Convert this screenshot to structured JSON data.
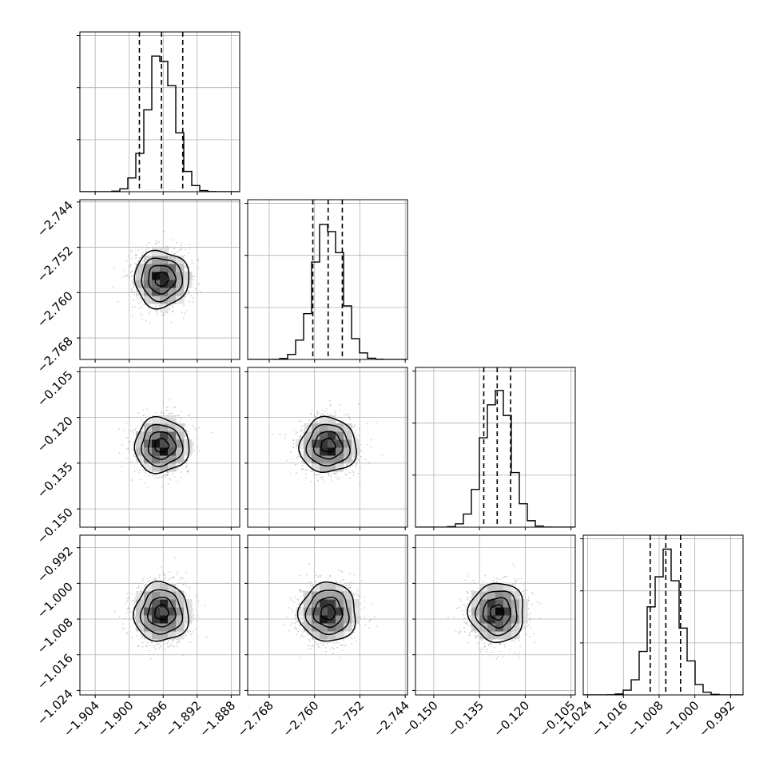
{
  "chart_data": {
    "type": "corner",
    "title": "",
    "parameters": [
      {
        "name": "",
        "ticks": [
          -1.904,
          -1.9,
          -1.896,
          -1.892,
          -1.888
        ],
        "tick_labels": [
          "−1.904",
          "−1.900",
          "−1.896",
          "−1.892",
          "−1.888"
        ],
        "range": [
          -1.9058,
          -1.887
        ],
        "mean": -1.8962,
        "std": 0.0016,
        "quantiles": [
          -1.8988,
          -1.8962,
          -1.8937
        ]
      },
      {
        "name": "",
        "ticks": [
          -2.768,
          -2.76,
          -2.752,
          -2.744
        ],
        "tick_labels": [
          "−2.768",
          "−2.760",
          "−2.752",
          "−2.744"
        ],
        "range": [
          -2.7718,
          -2.7436
        ],
        "mean": -2.7576,
        "std": 0.0025,
        "quantiles": [
          -2.7603,
          -2.7576,
          -2.7551
        ]
      },
      {
        "name": "",
        "ticks": [
          -0.15,
          -0.135,
          -0.12,
          -0.105
        ],
        "tick_labels": [
          "−0.150",
          "−0.135",
          "−0.120",
          "−0.105"
        ],
        "range": [
          -0.156,
          -0.1036
        ],
        "mean": -0.1292,
        "std": 0.0045,
        "quantiles": [
          -0.1336,
          -0.1292,
          -0.1248
        ]
      },
      {
        "name": "",
        "ticks": [
          -1.024,
          -1.016,
          -1.008,
          -1.0,
          -0.992
        ],
        "tick_labels": [
          "−1.024",
          "−1.016",
          "−1.008",
          "−1.000",
          "−0.992"
        ],
        "range": [
          -1.025,
          -0.9892
        ],
        "mean": -1.0065,
        "std": 0.0033,
        "quantiles": [
          -1.01,
          -1.0065,
          -1.0032
        ]
      }
    ],
    "histogram_bins": 20,
    "contour_levels_sigma": [
      0.5,
      1.0,
      1.5,
      2.0
    ],
    "grid": true,
    "legend": "none"
  }
}
